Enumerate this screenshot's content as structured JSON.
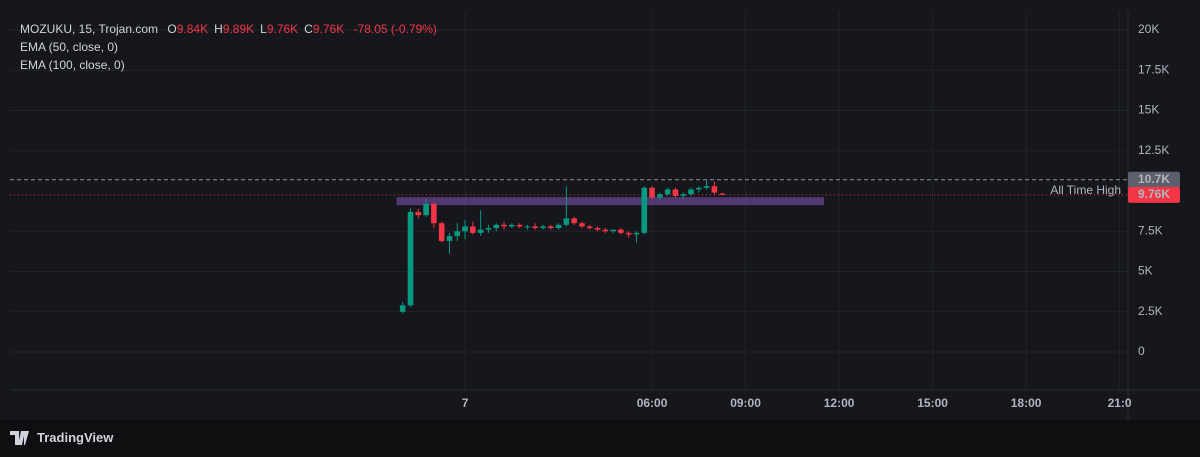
{
  "chart_data": {
    "type": "candlestick",
    "title": "MOZUKU, 15, Trojan.com",
    "ohlc_legend": [
      {
        "key": "O",
        "value": "9.84K"
      },
      {
        "key": "H",
        "value": "9.89K"
      },
      {
        "key": "L",
        "value": "9.76K"
      },
      {
        "key": "C",
        "value": "9.76K"
      }
    ],
    "change": "-78.05 (-0.79%)",
    "indicators": [
      "EMA (50, close, 0)",
      "EMA (100, close, 0)"
    ],
    "up_color": "#089981",
    "down_color": "#f23645",
    "x": [
      -2,
      -1.75,
      -1.5,
      -1.25,
      -1,
      -0.75,
      -0.5,
      -0.25,
      0,
      0.25,
      0.5,
      0.75,
      1,
      1.25,
      1.5,
      1.75,
      2,
      2.25,
      2.5,
      2.75,
      3,
      3.25,
      3.5,
      3.75,
      4,
      4.25,
      4.5,
      4.75,
      5,
      5.25,
      5.5,
      5.75,
      6,
      6.25,
      6.5,
      6.75,
      7,
      7.25,
      7.5,
      7.75,
      8,
      8.25
    ],
    "open": [
      2500,
      2900,
      8700,
      8500,
      9200,
      8000,
      6900,
      7200,
      7500,
      7800,
      7400,
      7600,
      7700,
      7900,
      7800,
      7900,
      7800,
      7800,
      7700,
      7800,
      7700,
      7900,
      8300,
      8000,
      7800,
      7700,
      7600,
      7500,
      7600,
      7400,
      7300,
      7400,
      10200,
      9600,
      9800,
      10100,
      9700,
      9800,
      10100,
      10200,
      10300,
      9840
    ],
    "high": [
      3100,
      8900,
      8900,
      9500,
      9300,
      8100,
      7400,
      8000,
      8200,
      8100,
      8800,
      7900,
      8000,
      8100,
      8000,
      8000,
      7900,
      8000,
      7900,
      7900,
      8000,
      10300,
      8400,
      8100,
      7900,
      7800,
      7700,
      7600,
      7700,
      7500,
      7500,
      10300,
      10300,
      9900,
      10200,
      10200,
      9900,
      10200,
      10300,
      10700,
      10600,
      9890
    ],
    "low": [
      2400,
      2800,
      8300,
      8400,
      7700,
      6800,
      6100,
      6900,
      7000,
      7300,
      7200,
      7400,
      7500,
      7600,
      7700,
      7700,
      7600,
      7600,
      7600,
      7600,
      7600,
      7800,
      7900,
      7700,
      7600,
      7500,
      7400,
      7400,
      7300,
      7100,
      6800,
      7300,
      9500,
      9400,
      9700,
      9600,
      9500,
      9700,
      9900,
      10100,
      9800,
      9760
    ],
    "close": [
      2900,
      8700,
      8500,
      9200,
      8000,
      6900,
      7200,
      7500,
      7800,
      7400,
      7600,
      7700,
      7900,
      7800,
      7900,
      7800,
      7800,
      7700,
      7800,
      7700,
      7900,
      8300,
      8000,
      7800,
      7700,
      7600,
      7500,
      7600,
      7400,
      7300,
      7400,
      10200,
      9600,
      9800,
      10100,
      9700,
      9800,
      10100,
      10200,
      10300,
      9900,
      9760
    ],
    "xlim": [
      -14.6,
      21.27
    ],
    "ylim": [
      -2360,
      21120
    ],
    "xticks": [
      {
        "value": 0,
        "label": "7"
      },
      {
        "value": 6,
        "label": "06:00"
      },
      {
        "value": 9,
        "label": "09:00"
      },
      {
        "value": 12,
        "label": "12:00"
      },
      {
        "value": 15,
        "label": "15:00"
      },
      {
        "value": 18,
        "label": "18:00"
      },
      {
        "value": 21,
        "label": "21:0"
      }
    ],
    "yticks": [
      0,
      {
        "value": 2500,
        "label": "2.5K"
      },
      {
        "value": 5000,
        "label": "5K"
      },
      {
        "value": 7500,
        "label": "7.5K"
      },
      {
        "value": 12500,
        "label": "12.5K"
      },
      {
        "value": 15000,
        "label": "15K"
      },
      {
        "value": 17500,
        "label": "17.5K"
      },
      {
        "value": 20000,
        "label": "20K"
      }
    ],
    "grid": true,
    "high_line": {
      "value": 10700,
      "label": "10.7K",
      "color": "#b2b5be"
    },
    "last_price": {
      "value": 9760,
      "label": "9.76K",
      "color": "#f23645"
    },
    "zone": {
      "label": "All Time High",
      "x": [
        -2.2,
        11.52
      ],
      "y": [
        9120,
        9620
      ],
      "color": "#7b4fa8"
    }
  },
  "footer": {
    "brand": "TradingView"
  }
}
